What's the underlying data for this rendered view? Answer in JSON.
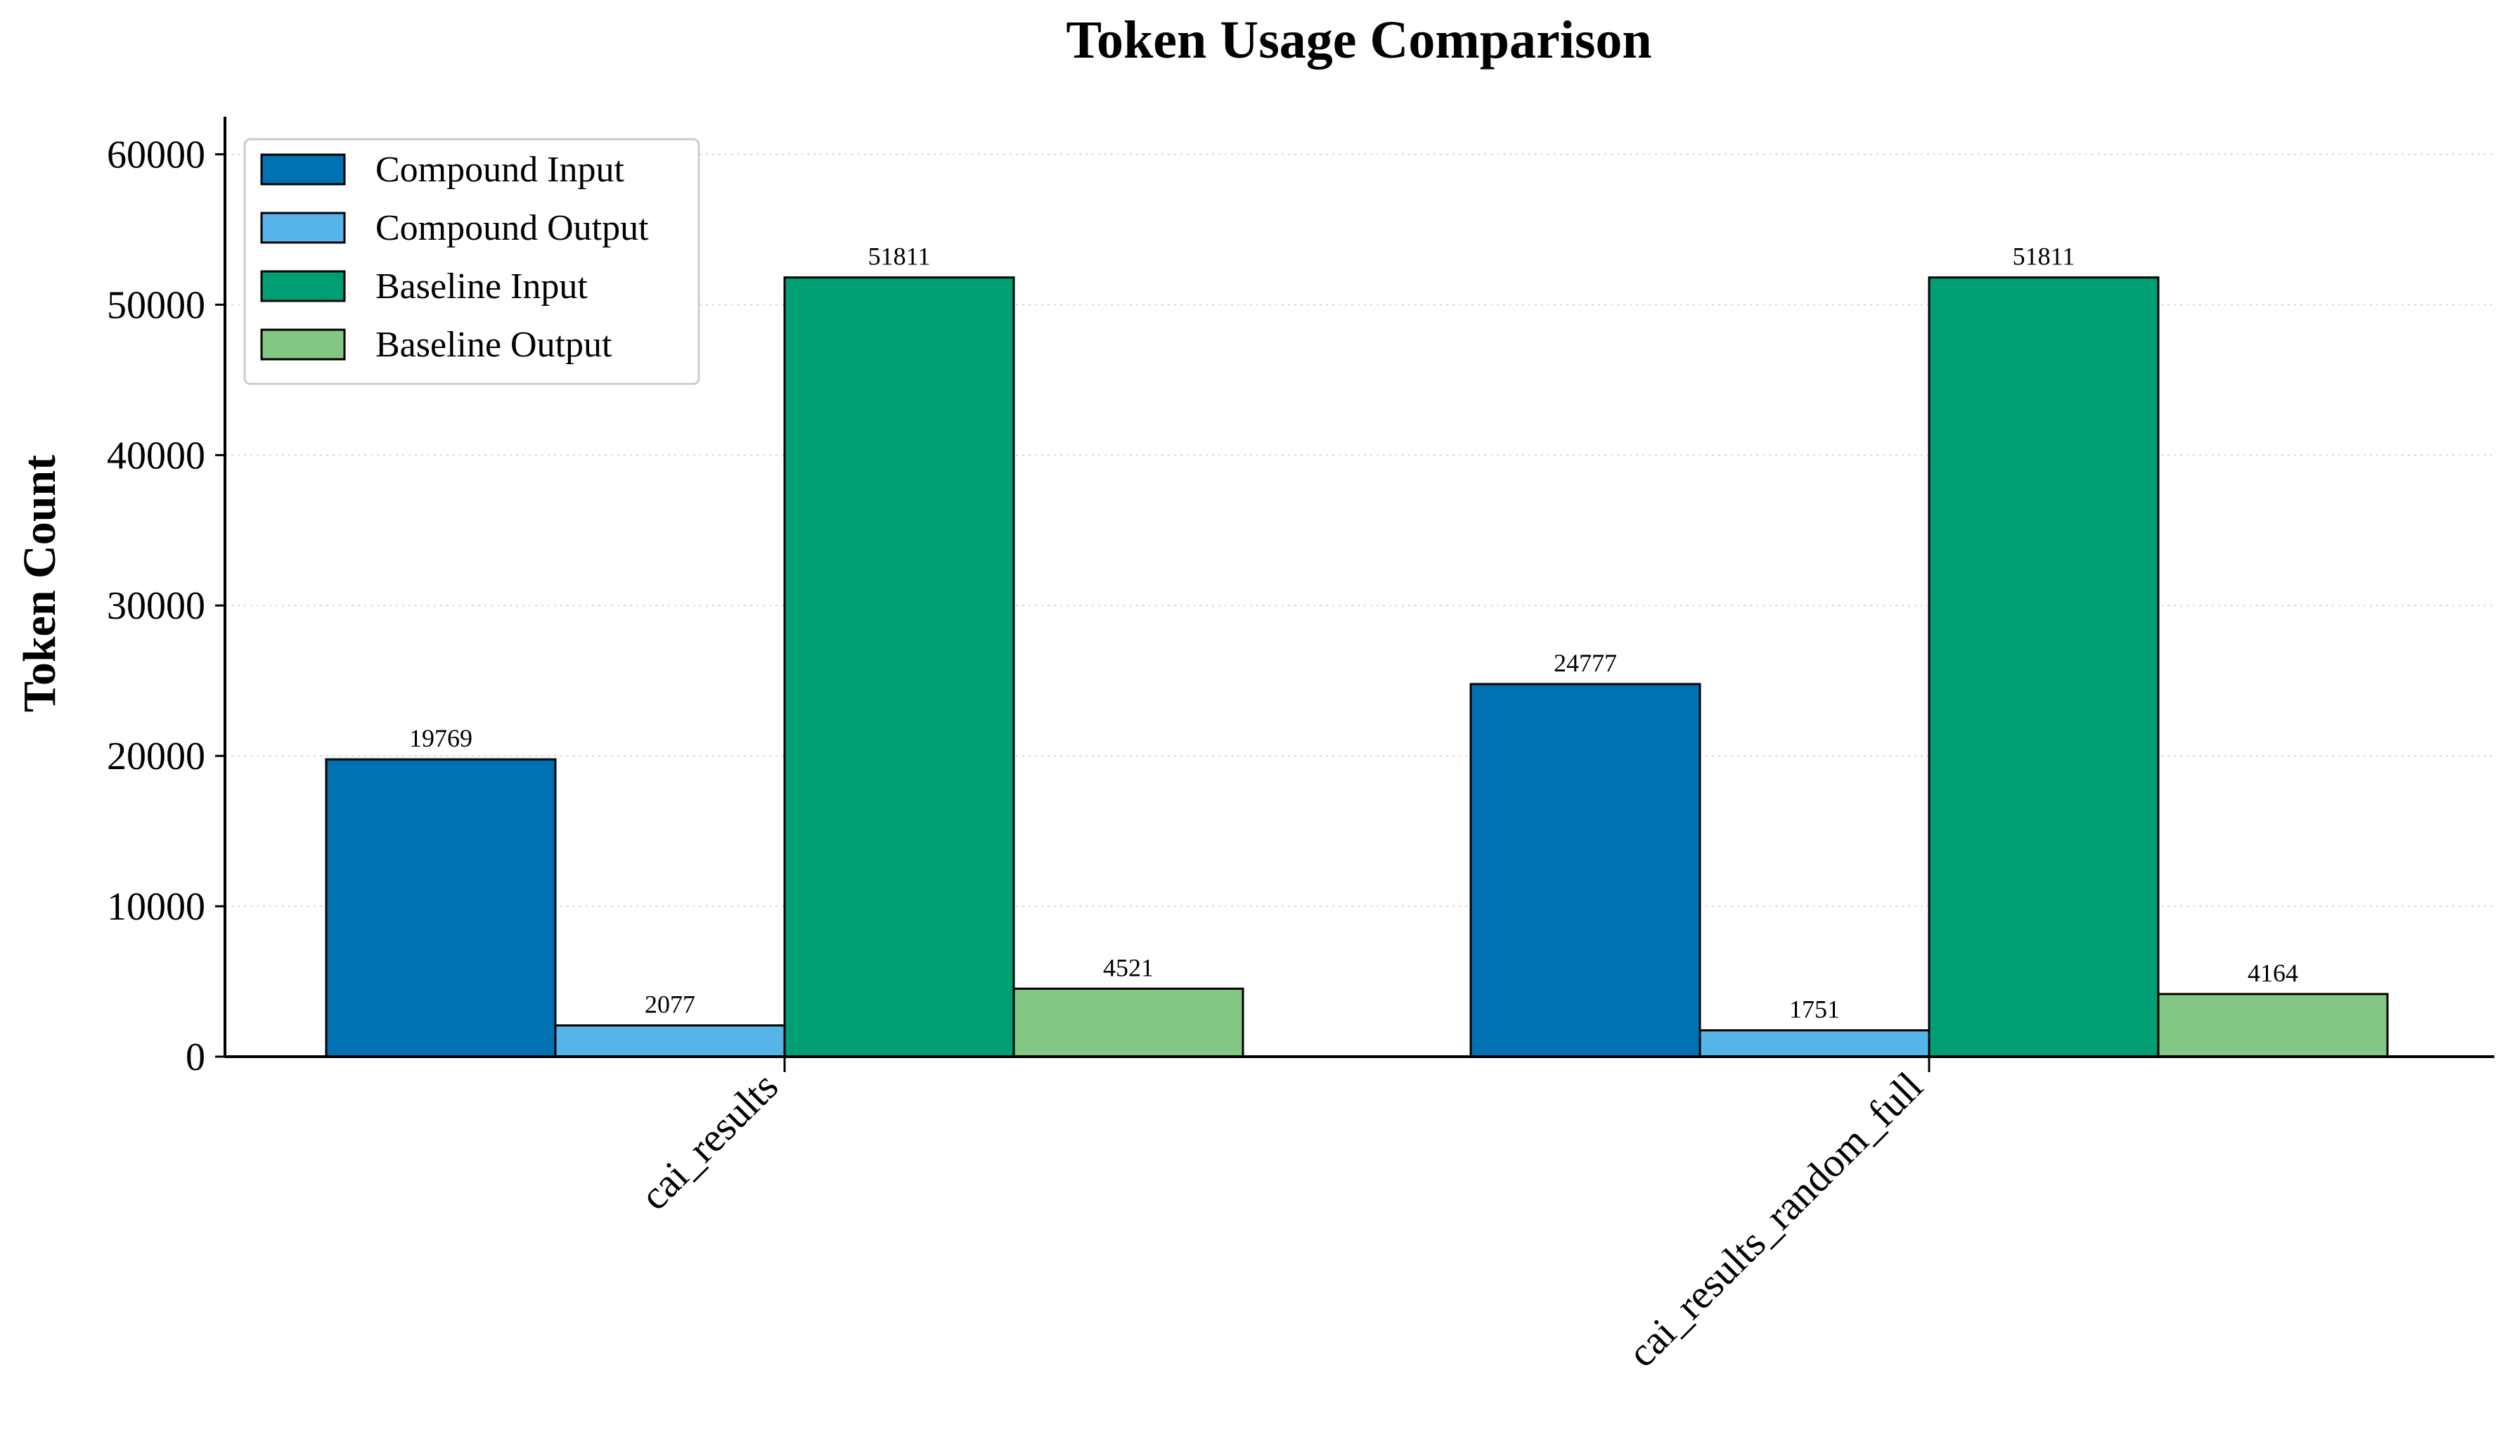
{
  "chart_data": {
    "type": "bar",
    "title": "Token Usage Comparison",
    "xlabel": "",
    "ylabel": "Token Count",
    "ylim": [
      0,
      62500
    ],
    "yticks": [
      0,
      10000,
      20000,
      30000,
      40000,
      50000,
      60000
    ],
    "grid": "horizontal dotted",
    "legend_position": "top-left",
    "categories": [
      "cai_results",
      "cai_results_random_full"
    ],
    "series": [
      {
        "name": "Compound Input",
        "color": "#0072b2",
        "values": [
          19769,
          24777
        ]
      },
      {
        "name": "Compound Output",
        "color": "#56b4e9",
        "values": [
          2077,
          1751
        ]
      },
      {
        "name": "Baseline Input",
        "color": "#009e73",
        "values": [
          51811,
          51811
        ]
      },
      {
        "name": "Baseline Output",
        "color": "#82c784",
        "values": [
          4521,
          4164
        ]
      }
    ]
  }
}
